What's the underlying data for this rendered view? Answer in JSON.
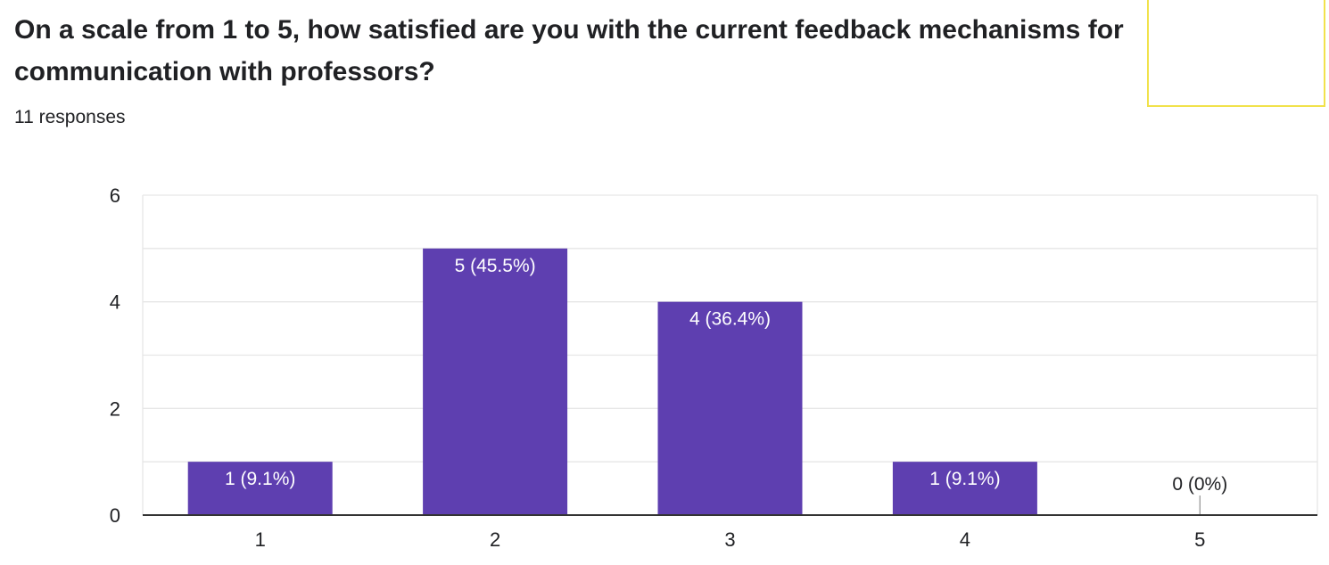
{
  "question": {
    "title": "On a scale from 1 to 5, how satisfied are you with the current feedback mechanisms for communication with professors?",
    "responses": "11 responses"
  },
  "colors": {
    "bar": "#5e3fb0",
    "grid": "#e6e6e6",
    "axis": "#333333",
    "text": "#202124",
    "highlight": "#f1e24b"
  },
  "chart_data": {
    "type": "bar",
    "categories": [
      "1",
      "2",
      "3",
      "4",
      "5"
    ],
    "values": [
      1,
      5,
      4,
      1,
      0
    ],
    "data_labels": [
      "1 (9.1%)",
      "5 (45.5%)",
      "4 (36.4%)",
      "1 (9.1%)",
      "0 (0%)"
    ],
    "ylim": [
      0,
      6
    ],
    "yticks": [
      "0",
      "2",
      "4",
      "6"
    ],
    "minor_gridlines": true,
    "legend": "none"
  }
}
